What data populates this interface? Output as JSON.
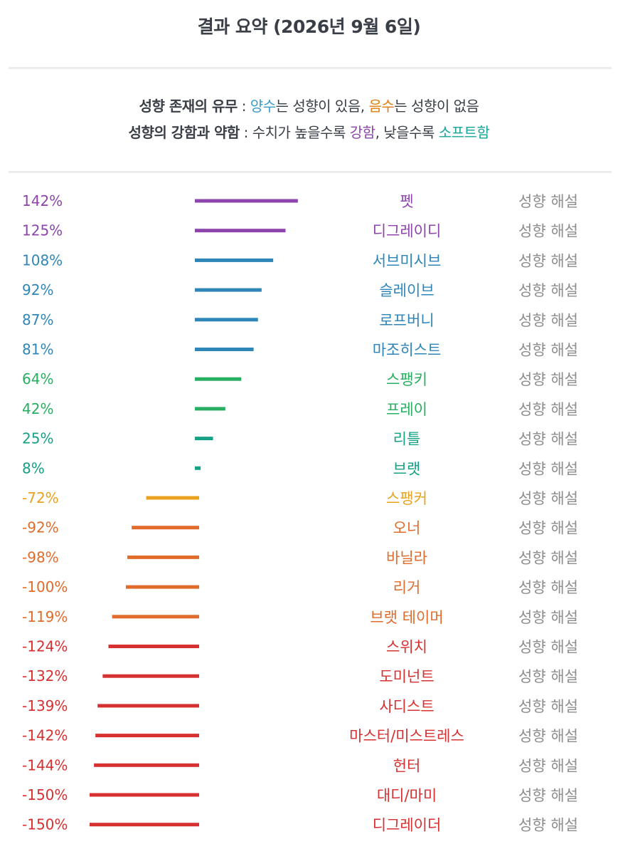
{
  "title": "결과 요약 (2026년 9월 6일)",
  "legend": {
    "line1": {
      "label": "성향 존재의 유무",
      "sep": " : ",
      "positive_word": "양수",
      "positive_rest": "는 성향이 있음, ",
      "negative_word": "음수",
      "negative_rest": "는 성향이 없음"
    },
    "line2": {
      "label": "성향의 강함과 약함",
      "sep": " : 수치가 높을수록 ",
      "strong_word": "강함",
      "middle": ", 낮을수록 ",
      "soft_word": "소프트함"
    }
  },
  "colors": {
    "positive_word": "#3a9bc7",
    "negative_word": "#e07b14",
    "strong_word": "#8e44ad",
    "soft_word": "#16a39a",
    "link": "#8d8d8d"
  },
  "link_label": "성향 해설",
  "chart_data": {
    "type": "bar",
    "orientation": "horizontal",
    "value_unit": "%",
    "categories": [
      "펫",
      "디그레이디",
      "서브미시브",
      "슬레이브",
      "로프버니",
      "마조히스트",
      "스팽키",
      "프레이",
      "리틀",
      "브랫",
      "스팽커",
      "오너",
      "바닐라",
      "리거",
      "브랫 테이머",
      "스위치",
      "도미넌트",
      "사디스트",
      "마스터/미스트레스",
      "헌터",
      "대디/마미",
      "디그레이더"
    ],
    "values": [
      142,
      125,
      108,
      92,
      87,
      81,
      64,
      42,
      25,
      8,
      -72,
      -92,
      -98,
      -100,
      -119,
      -124,
      -132,
      -139,
      -142,
      -144,
      -150,
      -150
    ],
    "labels": [
      "142%",
      "125%",
      "108%",
      "92%",
      "87%",
      "81%",
      "64%",
      "42%",
      "25%",
      "8%",
      "-72%",
      "-92%",
      "-98%",
      "-100%",
      "-119%",
      "-124%",
      "-132%",
      "-139%",
      "-142%",
      "-144%",
      "-150%",
      "-150%"
    ],
    "colors": [
      "#8e44ad",
      "#8e44ad",
      "#2e86b8",
      "#2e86b8",
      "#2e86b8",
      "#2e86b8",
      "#27ae60",
      "#27ae60",
      "#16a085",
      "#16a085",
      "#e8a21d",
      "#e06b2b",
      "#e06b2b",
      "#e06b2b",
      "#e06b2b",
      "#d63031",
      "#d63031",
      "#d63031",
      "#d63031",
      "#d63031",
      "#d63031",
      "#d63031"
    ],
    "label_colors": [
      "#8e44ad",
      "#8e44ad",
      "#2e86b8",
      "#2e86b8",
      "#2e86b8",
      "#2e86b8",
      "#27ae60",
      "#27ae60",
      "#16a085",
      "#16a085",
      "#e8a21d",
      "#e06b2b",
      "#e06b2b",
      "#e06b2b",
      "#e06b2b",
      "#d63031",
      "#d63031",
      "#d63031",
      "#d63031",
      "#d63031",
      "#d63031",
      "#d63031"
    ]
  }
}
